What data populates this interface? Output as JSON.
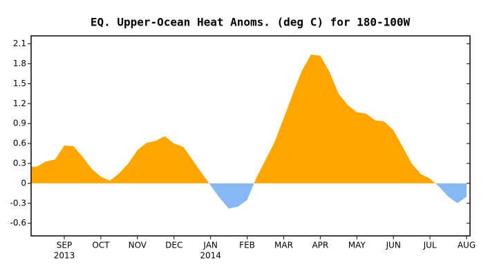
{
  "chart_data": {
    "type": "area",
    "title": "EQ. Upper-Ocean Heat Anoms. (deg C) for 180-100W",
    "categories": [
      null,
      null,
      null,
      "SEP",
      null,
      null,
      null,
      "OCT",
      null,
      null,
      null,
      "NOV",
      null,
      null,
      null,
      "DEC",
      null,
      null,
      null,
      "JAN",
      null,
      null,
      null,
      "FEB",
      null,
      null,
      null,
      "MAR",
      null,
      null,
      null,
      "APR",
      null,
      null,
      null,
      "MAY",
      null,
      null,
      null,
      "JUN",
      null,
      null,
      null,
      "JUL",
      null,
      null,
      null,
      "AUG"
    ],
    "category_sublabels": [
      null,
      null,
      null,
      "2013",
      null,
      null,
      null,
      null,
      null,
      null,
      null,
      null,
      null,
      null,
      null,
      null,
      null,
      null,
      null,
      "2014",
      null,
      null,
      null,
      null,
      null,
      null,
      null,
      null,
      null,
      null,
      null,
      null,
      null,
      null,
      null,
      null,
      null,
      null,
      null,
      null,
      null,
      null,
      null,
      null,
      null,
      null,
      null,
      null
    ],
    "values": [
      0.25,
      0.33,
      0.36,
      0.57,
      0.56,
      0.4,
      0.22,
      0.1,
      0.04,
      0.15,
      0.3,
      0.5,
      0.61,
      0.64,
      0.71,
      0.6,
      0.55,
      0.36,
      0.16,
      -0.03,
      -0.22,
      -0.38,
      -0.35,
      -0.25,
      0.08,
      0.35,
      0.62,
      0.98,
      1.35,
      1.7,
      1.94,
      1.92,
      1.68,
      1.35,
      1.18,
      1.07,
      1.05,
      0.95,
      0.93,
      0.8,
      0.55,
      0.3,
      0.14,
      0.07,
      -0.05,
      -0.2,
      -0.3,
      -0.2
    ],
    "positive_color": "#ffa500",
    "negative_color": "#87b8f5",
    "ylim": [
      -0.79,
      2.22
    ],
    "yticks": [
      2.1,
      1.8,
      1.5,
      1.2,
      0.9,
      0.6,
      0.3,
      0,
      -0.3,
      -0.6
    ]
  }
}
